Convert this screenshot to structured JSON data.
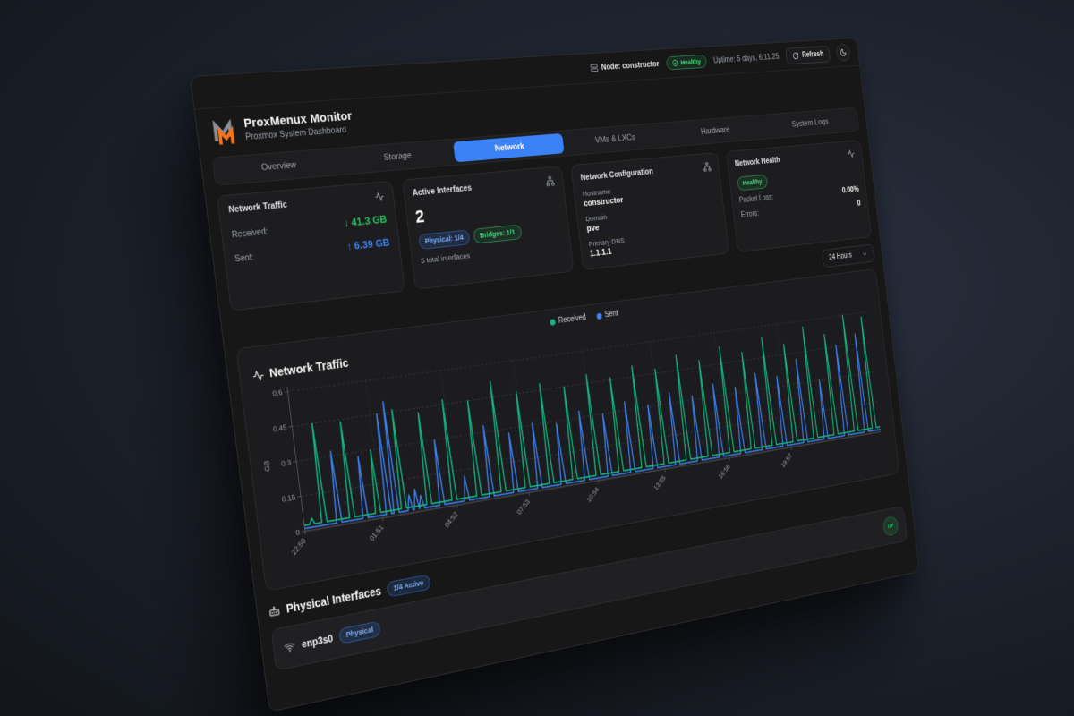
{
  "colors": {
    "accent_blue": "#3b82f6",
    "green": "#22c55e",
    "emerald": "#10b981",
    "orange_logo": "#f97316",
    "card_bg": "#1d1d1f",
    "dashboard_bg": "#171717",
    "page_bg": "#1d222c"
  },
  "icons": {
    "node": "server-icon",
    "health": "check-circle-icon",
    "refresh": "refresh-cw-icon",
    "theme": "moon-icon",
    "traffic_card": "activity-icon",
    "interfaces_card": "network-icon",
    "config_card": "network-icon",
    "health_card": "activity-icon",
    "dropdown": "chevron-down-icon",
    "chart": "activity-icon",
    "physical_section": "ethernet-port-icon",
    "interface_row": "wifi-icon"
  },
  "topbar": {
    "node_label": "Node: constructor",
    "health_badge": "Healthy",
    "uptime": "Uptime: 5 days, 6:11:25",
    "refresh_label": "Refresh"
  },
  "header": {
    "title": "ProxMenux Monitor",
    "subtitle": "Proxmox System Dashboard"
  },
  "tabs": [
    {
      "label": "Overview",
      "active": false
    },
    {
      "label": "Storage",
      "active": false
    },
    {
      "label": "Network",
      "active": true
    },
    {
      "label": "VMs & LXCs",
      "active": false
    },
    {
      "label": "Hardware",
      "active": false
    },
    {
      "label": "System Logs",
      "active": false
    }
  ],
  "cards": {
    "traffic": {
      "title": "Network Traffic",
      "received_label": "Received:",
      "received_value": "↓ 41.3 GB",
      "sent_label": "Sent:",
      "sent_value": "↑ 6.39 GB"
    },
    "interfaces": {
      "title": "Active Interfaces",
      "count": "2",
      "physical_badge": "Physical: 1/4",
      "bridges_badge": "Bridges: 1/1",
      "total_caption": "5 total interfaces"
    },
    "config": {
      "title": "Network Configuration",
      "hostname_label": "Hostname",
      "hostname": "constructor",
      "domain_label": "Domain",
      "domain": "pve",
      "dns_label": "Primary DNS",
      "dns": "1.1.1.1"
    },
    "health": {
      "title": "Network Health",
      "status_badge": "Healthy",
      "packet_loss_label": "Packet Loss:",
      "packet_loss": "0.00%",
      "errors_label": "Errors:",
      "errors": "0"
    }
  },
  "time_range": {
    "selected": "24 Hours"
  },
  "chart": {
    "title": "Network Traffic"
  },
  "chart_data": {
    "type": "line",
    "title": "Network Traffic",
    "ylabel": "GB",
    "ylim": [
      0,
      0.6
    ],
    "y_ticks": [
      0,
      0.15,
      0.3,
      0.45,
      0.6
    ],
    "x_ticks": [
      "22:50",
      "01:51",
      "04:52",
      "07:53",
      "10:54",
      "13:55",
      "16:56",
      "19:57"
    ],
    "x_tick_span": 8.5,
    "grid": "dashed",
    "legend_position": "top-center",
    "legend": [
      "Received",
      "Sent"
    ],
    "series": [
      {
        "name": "Received",
        "color": "#10b981",
        "baseline": 0.025,
        "spikes_xv": [
          [
            0.012,
            0.05
          ],
          [
            0.03,
            0.45
          ],
          [
            0.072,
            0.44
          ],
          [
            0.112,
            0.3
          ],
          [
            0.152,
            0.46
          ],
          [
            0.192,
            0.43
          ],
          [
            0.232,
            0.47
          ],
          [
            0.272,
            0.45
          ],
          [
            0.312,
            0.52
          ],
          [
            0.352,
            0.46
          ],
          [
            0.392,
            0.48
          ],
          [
            0.432,
            0.45
          ],
          [
            0.472,
            0.49
          ],
          [
            0.512,
            0.46
          ],
          [
            0.552,
            0.5
          ],
          [
            0.592,
            0.47
          ],
          [
            0.632,
            0.52
          ],
          [
            0.672,
            0.48
          ],
          [
            0.712,
            0.53
          ],
          [
            0.752,
            0.49
          ],
          [
            0.792,
            0.55
          ],
          [
            0.832,
            0.5
          ],
          [
            0.872,
            0.57
          ],
          [
            0.912,
            0.52
          ],
          [
            0.952,
            0.6
          ],
          [
            0.988,
            0.58
          ]
        ]
      },
      {
        "name": "Sent",
        "color": "#3b82f6",
        "baseline": 0.012,
        "spikes_xv": [
          [
            0.052,
            0.32
          ],
          [
            0.092,
            0.28
          ],
          [
            0.128,
            0.45
          ],
          [
            0.14,
            0.5
          ],
          [
            0.162,
            0.08
          ],
          [
            0.172,
            0.1
          ],
          [
            0.18,
            0.07
          ],
          [
            0.212,
            0.3
          ],
          [
            0.252,
            0.12
          ],
          [
            0.292,
            0.33
          ],
          [
            0.332,
            0.28
          ],
          [
            0.372,
            0.31
          ],
          [
            0.412,
            0.29
          ],
          [
            0.452,
            0.33
          ],
          [
            0.492,
            0.3
          ],
          [
            0.532,
            0.34
          ],
          [
            0.572,
            0.31
          ],
          [
            0.612,
            0.35
          ],
          [
            0.652,
            0.32
          ],
          [
            0.692,
            0.36
          ],
          [
            0.732,
            0.33
          ],
          [
            0.772,
            0.38
          ],
          [
            0.812,
            0.35
          ],
          [
            0.852,
            0.42
          ],
          [
            0.892,
            0.3
          ],
          [
            0.932,
            0.46
          ],
          [
            0.972,
            0.5
          ]
        ]
      }
    ]
  },
  "physical_section": {
    "title": "Physical Interfaces",
    "active_badge": "1/4 Active",
    "interfaces": [
      {
        "name": "enp3s0",
        "type_badge": "Physical",
        "status": "UP"
      }
    ]
  }
}
